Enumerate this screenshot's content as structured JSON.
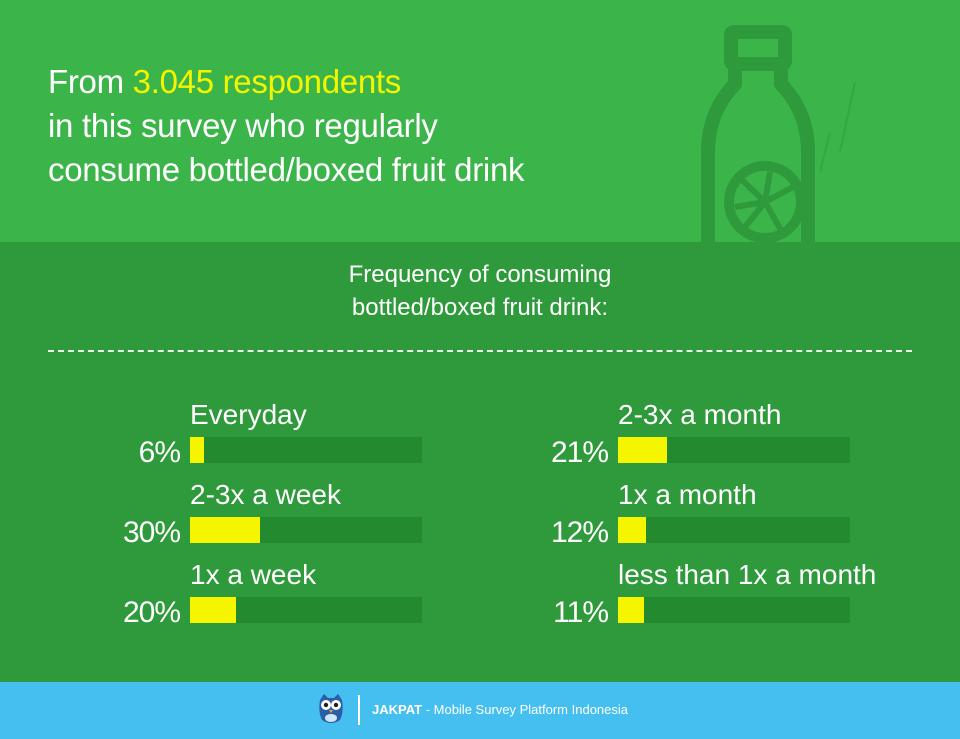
{
  "header": {
    "line1_prefix": "From ",
    "line1_highlight": "3.045 respondents",
    "line2": "in this survey who regularly",
    "line3": "consume bottled/boxed fruit drink"
  },
  "subtitle": {
    "line1": "Frequency of consuming",
    "line2": "bottled/boxed fruit drink:"
  },
  "chart_data": {
    "type": "bar",
    "title": "Frequency of consuming bottled/boxed fruit drink:",
    "categories": [
      "Everyday",
      "2-3x a week",
      "1x a week",
      "2-3x a month",
      "1x a month",
      "less than 1x a month"
    ],
    "values": [
      6,
      30,
      20,
      21,
      12,
      11
    ],
    "value_labels": [
      "6%",
      "30%",
      "20%",
      "21%",
      "12%",
      "11%"
    ],
    "unit": "%",
    "orientation": "horizontal",
    "colors": {
      "fill": "#f5f500",
      "track": "#248a2f"
    }
  },
  "footer": {
    "brand": "JAKPAT",
    "tagline": " - Mobile Survey Platform Indonesia"
  },
  "colors": {
    "top_bg": "#3bb54a",
    "mid_bg": "#2e9a3b",
    "footer_bg": "#45bff0",
    "highlight": "#f5f500"
  },
  "icons": [
    "bottle-icon",
    "owl-logo-icon"
  ]
}
